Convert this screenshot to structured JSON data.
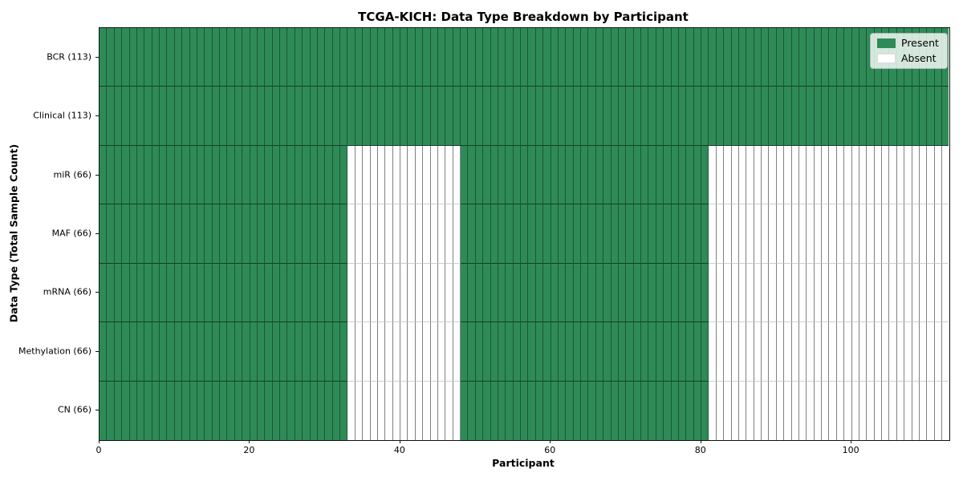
{
  "chart_data": {
    "type": "heatmap",
    "title": "TCGA-KICH: Data Type Breakdown by Participant",
    "xlabel": "Participant",
    "ylabel": "Data Type (Total Sample Count)",
    "n_participants": 113,
    "x_range": [
      0,
      113
    ],
    "x_ticks": [
      0,
      20,
      40,
      60,
      80,
      100
    ],
    "grid": "cell-borders",
    "legend_position": "upper right",
    "colors": {
      "present": "#2e8b57",
      "absent": "#ffffff"
    },
    "legend_entries": [
      {
        "label": "Present",
        "color": "#2e8b57"
      },
      {
        "label": "Absent",
        "color": "#ffffff"
      }
    ],
    "rows": [
      {
        "label": "BCR (113)",
        "data_type": "BCR",
        "total_samples": 113,
        "present_ranges": [
          [
            0,
            112
          ]
        ]
      },
      {
        "label": "Clinical (113)",
        "data_type": "Clinical",
        "total_samples": 113,
        "present_ranges": [
          [
            0,
            112
          ]
        ]
      },
      {
        "label": "miR (66)",
        "data_type": "miR",
        "total_samples": 66,
        "present_ranges": [
          [
            0,
            32
          ],
          [
            48,
            80
          ]
        ]
      },
      {
        "label": "MAF (66)",
        "data_type": "MAF",
        "total_samples": 66,
        "present_ranges": [
          [
            0,
            32
          ],
          [
            48,
            80
          ]
        ]
      },
      {
        "label": "mRNA (66)",
        "data_type": "mRNA",
        "total_samples": 66,
        "present_ranges": [
          [
            0,
            32
          ],
          [
            48,
            80
          ]
        ]
      },
      {
        "label": "Methylation (66)",
        "data_type": "Methylation",
        "total_samples": 66,
        "present_ranges": [
          [
            0,
            32
          ],
          [
            48,
            80
          ]
        ]
      },
      {
        "label": "CN (66)",
        "data_type": "CN",
        "total_samples": 66,
        "present_ranges": [
          [
            0,
            32
          ],
          [
            48,
            80
          ]
        ]
      }
    ]
  }
}
